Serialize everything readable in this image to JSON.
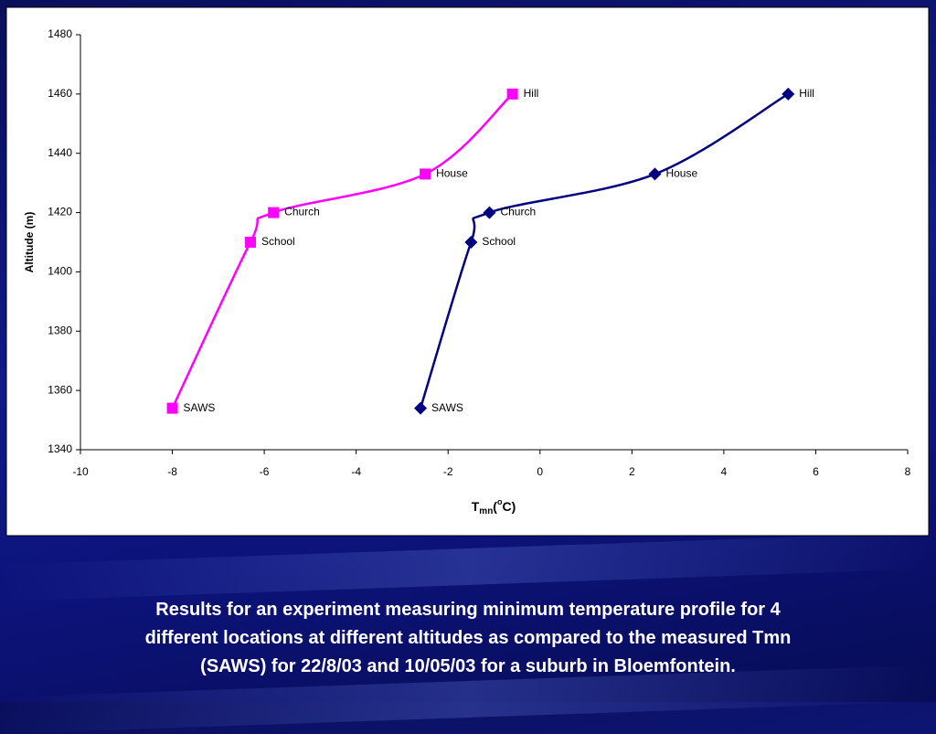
{
  "chart_data": {
    "type": "line",
    "y_label": "Altitude (m)",
    "x_label": {
      "base": "T",
      "sub": "mn",
      "open": "(",
      "sup": "o",
      "end": "C)"
    },
    "xlim": [
      -10,
      8
    ],
    "xticks": [
      -10,
      -8,
      -6,
      -4,
      -2,
      0,
      2,
      4,
      6,
      8
    ],
    "ylim": [
      1340,
      1480
    ],
    "yticks": [
      1340,
      1360,
      1380,
      1400,
      1420,
      1440,
      1460,
      1480
    ],
    "grid": false,
    "series": [
      {
        "color": "#ff00ff",
        "marker": "square",
        "x": [
          -8.0,
          -6.3,
          -5.8,
          -2.5,
          -0.6
        ],
        "values": [
          1354,
          1410,
          1420,
          1433,
          1460
        ],
        "labels": [
          "SAWS",
          "School",
          "Church",
          "House",
          "Hill"
        ]
      },
      {
        "color": "#000080",
        "marker": "diamond",
        "x": [
          -2.6,
          -1.5,
          -1.1,
          2.5,
          5.4
        ],
        "values": [
          1354,
          1410,
          1420,
          1433,
          1460
        ],
        "labels": [
          "SAWS",
          "School",
          "Church",
          "House",
          "Hill"
        ]
      }
    ]
  },
  "caption": [
    "Results for an experiment measuring minimum temperature profile for 4",
    "different locations at different altitudes as compared to the measured Tmn",
    "(SAWS) for 22/8/03 and 10/05/03 for a suburb in Bloemfontein."
  ]
}
